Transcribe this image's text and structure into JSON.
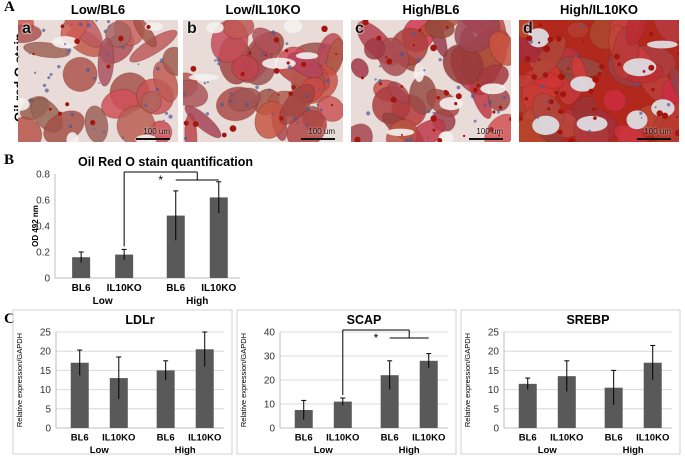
{
  "panel_a": {
    "letter": "A",
    "side_label": "Oil red O stain",
    "photos": [
      {
        "letter": "a",
        "title": "Low/BL6",
        "scale": "100 um"
      },
      {
        "letter": "b",
        "title": "Low/IL10KO",
        "scale": "100 um"
      },
      {
        "letter": "c",
        "title": "High/BL6",
        "scale": "100 um"
      },
      {
        "letter": "d",
        "title": "High/IL10KO",
        "scale": "100 um"
      }
    ]
  },
  "panel_b": {
    "letter": "B"
  },
  "panel_c": {
    "letter": "C"
  },
  "colors": {
    "bar": "#595959",
    "stain_red": "#c0392b",
    "axis": "#bfbfbf"
  },
  "chart_data": [
    {
      "type": "bar",
      "title": "Oil Red O stain quantification",
      "ylabel": "OD 492 nm",
      "ylim": [
        0,
        0.8
      ],
      "yticks": [
        "0",
        "0.2",
        "0.4",
        "0.6",
        "0.8"
      ],
      "categories": [
        "BL6",
        "IL10KO",
        "BL6",
        "IL10KO"
      ],
      "groups": [
        "Low",
        "High"
      ],
      "values": [
        0.16,
        0.18,
        0.48,
        0.62
      ],
      "errors": [
        0.04,
        0.04,
        0.19,
        0.12
      ],
      "significance": "*"
    },
    {
      "type": "bar",
      "title": "LDLr",
      "ylabel": "Relative expression/GAPDH",
      "ylim": [
        0,
        25
      ],
      "yticks": [
        "0",
        "5",
        "10",
        "15",
        "20",
        "25"
      ],
      "categories": [
        "BL6",
        "IL10KO",
        "BL6",
        "IL10KO"
      ],
      "groups": [
        "Low",
        "High"
      ],
      "values": [
        17,
        13,
        15,
        20.5
      ],
      "errors": [
        3.3,
        5.5,
        2.5,
        4.5
      ]
    },
    {
      "type": "bar",
      "title": "SCAP",
      "ylabel": "Relative expression/GAPDH",
      "ylim": [
        0,
        40
      ],
      "yticks": [
        "0",
        "10",
        "20",
        "30",
        "40"
      ],
      "categories": [
        "BL6",
        "IL10KO",
        "BL6",
        "IL10KO"
      ],
      "groups": [
        "Low",
        "High"
      ],
      "values": [
        7.5,
        11,
        22,
        28
      ],
      "errors": [
        4,
        1.5,
        6,
        3
      ],
      "significance": "*"
    },
    {
      "type": "bar",
      "title": "SREBP",
      "ylabel": "Relative expression/GAPDH",
      "ylim": [
        0,
        25
      ],
      "yticks": [
        "0",
        "5",
        "10",
        "15",
        "20",
        "25"
      ],
      "categories": [
        "BL6",
        "IL10KO",
        "BL6",
        "IL10KO"
      ],
      "groups": [
        "Low",
        "High"
      ],
      "values": [
        11.5,
        13.5,
        10.5,
        17
      ],
      "errors": [
        1.5,
        4,
        4.5,
        4.5
      ]
    }
  ]
}
